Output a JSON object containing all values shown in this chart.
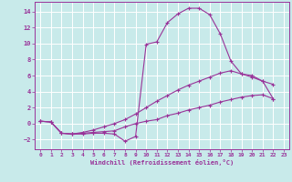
{
  "background_color": "#c8eaea",
  "grid_color": "#ffffff",
  "line_color": "#993399",
  "marker_color": "#993399",
  "xlabel": "Windchill (Refroidissement éolien,°C)",
  "xlim": [
    -0.5,
    23.5
  ],
  "ylim": [
    -3.2,
    15.2
  ],
  "xticks": [
    0,
    1,
    2,
    3,
    4,
    5,
    6,
    7,
    8,
    9,
    10,
    11,
    12,
    13,
    14,
    15,
    16,
    17,
    18,
    19,
    20,
    21,
    22,
    23
  ],
  "yticks": [
    -2,
    0,
    2,
    4,
    6,
    8,
    10,
    12,
    14
  ],
  "series": [
    {
      "x": [
        0,
        1,
        2,
        3,
        4,
        5,
        6,
        7,
        8,
        9,
        10,
        11,
        12,
        13,
        14,
        15,
        16,
        17,
        18,
        19,
        20,
        21,
        22
      ],
      "y": [
        0.3,
        0.2,
        -1.2,
        -1.3,
        -1.3,
        -1.2,
        -1.2,
        -1.3,
        -2.2,
        -1.6,
        9.9,
        10.2,
        12.6,
        13.7,
        14.4,
        14.4,
        13.6,
        11.2,
        7.8,
        6.2,
        6.0,
        5.3,
        3.1
      ]
    },
    {
      "x": [
        0,
        1,
        2,
        3,
        4,
        5,
        6,
        7,
        8,
        9,
        10,
        11,
        12,
        13,
        14,
        15,
        16,
        17,
        18,
        19,
        20,
        21,
        22
      ],
      "y": [
        0.3,
        0.2,
        -1.2,
        -1.3,
        -1.2,
        -1.1,
        -1.0,
        -0.9,
        -0.4,
        0.0,
        0.3,
        0.5,
        1.0,
        1.3,
        1.7,
        2.0,
        2.3,
        2.7,
        3.0,
        3.3,
        3.5,
        3.6,
        3.1
      ]
    },
    {
      "x": [
        0,
        1,
        2,
        3,
        4,
        5,
        6,
        7,
        8,
        9,
        10,
        11,
        12,
        13,
        14,
        15,
        16,
        17,
        18,
        19,
        20,
        21,
        22
      ],
      "y": [
        0.3,
        0.2,
        -1.2,
        -1.3,
        -1.1,
        -0.8,
        -0.4,
        0.0,
        0.5,
        1.2,
        2.0,
        2.8,
        3.5,
        4.2,
        4.8,
        5.3,
        5.8,
        6.3,
        6.6,
        6.2,
        5.8,
        5.3,
        4.9
      ]
    }
  ]
}
